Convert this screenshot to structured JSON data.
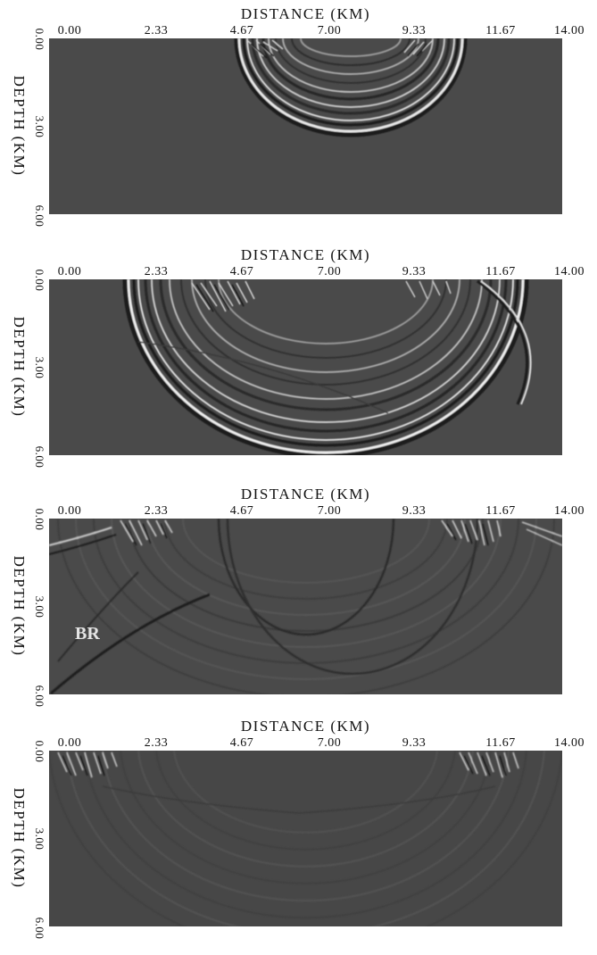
{
  "panels": [
    {
      "xlabel": "DISTANCE (KM)",
      "ylabel": "DEPTH (KM)",
      "xticks": [
        "0.00",
        "2.33",
        "4.67",
        "7.00",
        "9.33",
        "11.67",
        "14.00"
      ],
      "yticks": [
        "0.00",
        "3.00",
        "6.00"
      ]
    },
    {
      "xlabel": "DISTANCE (KM)",
      "ylabel": "DEPTH (KM)",
      "xticks": [
        "0.00",
        "2.33",
        "4.67",
        "7.00",
        "9.33",
        "11.67",
        "14.00"
      ],
      "yticks": [
        "0.00",
        "3.00",
        "6.00"
      ]
    },
    {
      "xlabel": "DISTANCE (KM)",
      "ylabel": "DEPTH (KM)",
      "xticks": [
        "0.00",
        "2.33",
        "4.67",
        "7.00",
        "9.33",
        "11.67",
        "14.00"
      ],
      "yticks": [
        "0.00",
        "3.00",
        "6.00"
      ],
      "annotation": "BR"
    },
    {
      "xlabel": "DISTANCE (KM)",
      "ylabel": "DEPTH (KM)",
      "xticks": [
        "0.00",
        "2.33",
        "4.67",
        "7.00",
        "9.33",
        "11.67",
        "14.00"
      ],
      "yticks": [
        "0.00",
        "3.00",
        "6.00"
      ]
    }
  ]
}
